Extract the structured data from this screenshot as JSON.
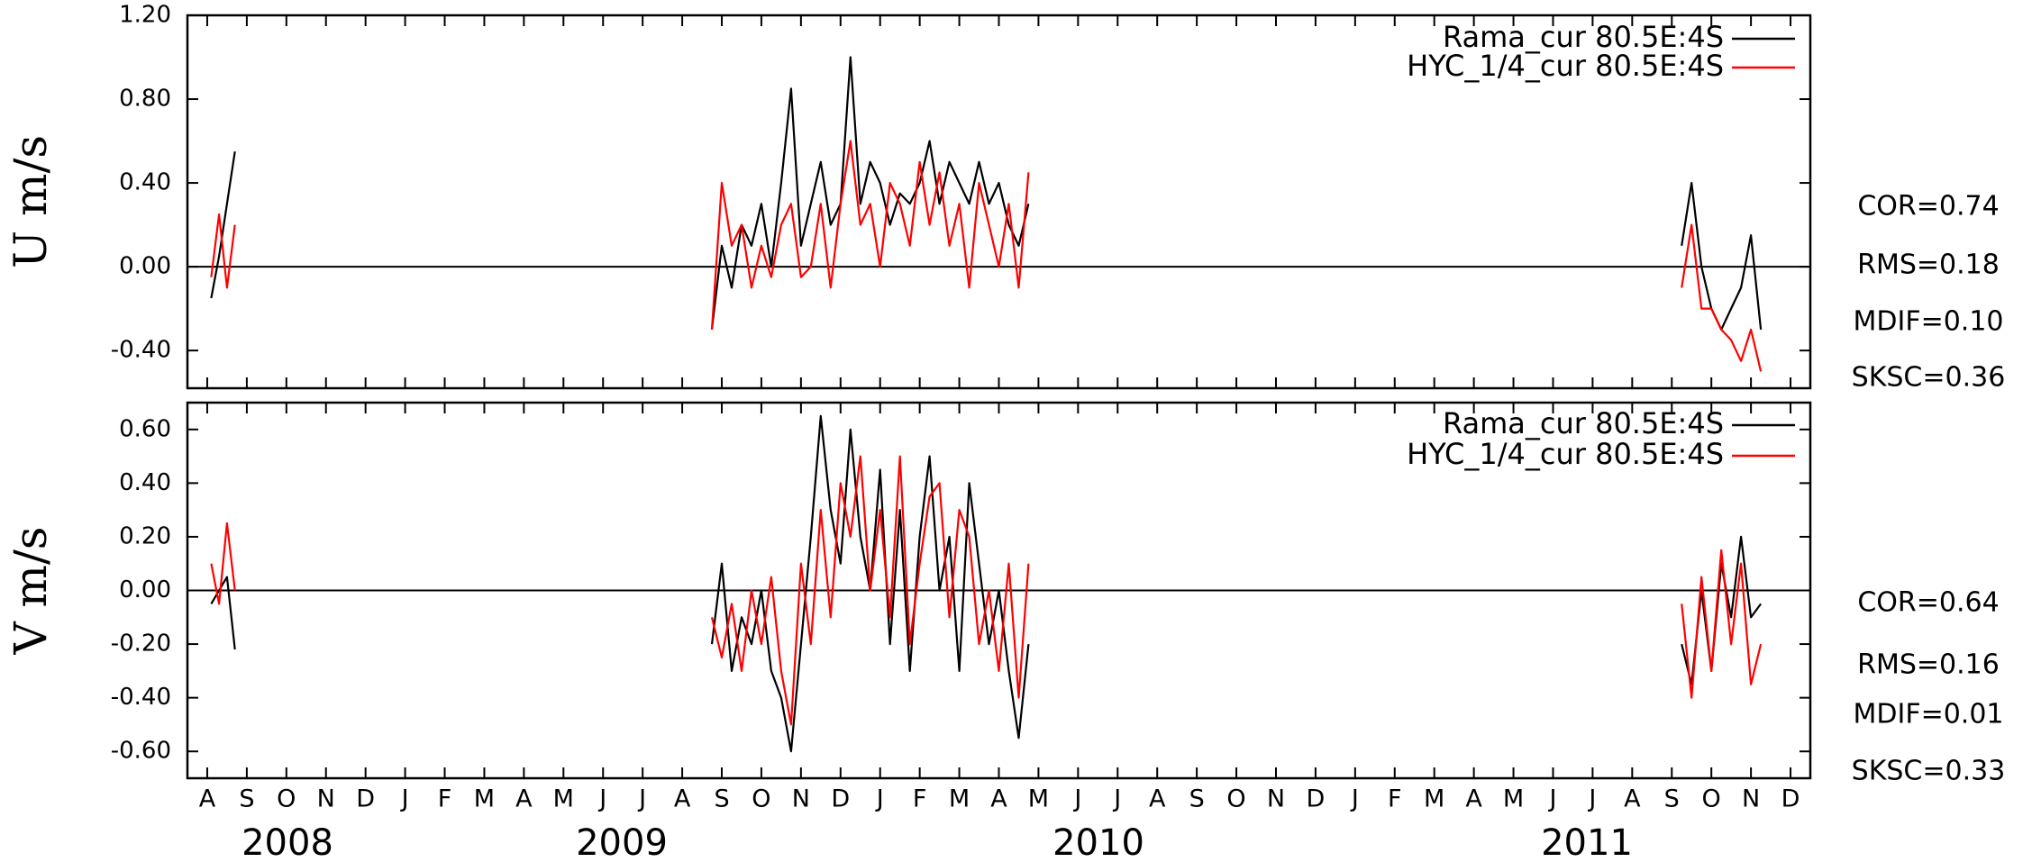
{
  "chart_data": [
    {
      "type": "line",
      "y_label": "U m/s",
      "x": [
        0.1,
        0.3,
        0.5,
        0.7,
        null,
        12.75,
        13,
        13.25,
        13.5,
        13.75,
        14,
        14.25,
        14.5,
        14.75,
        15,
        15.25,
        15.5,
        15.75,
        16,
        16.25,
        16.5,
        16.75,
        17,
        17.25,
        17.5,
        17.75,
        18,
        18.25,
        18.5,
        18.75,
        19,
        19.25,
        19.5,
        19.75,
        20,
        20.25,
        20.5,
        20.75,
        null,
        37.25,
        37.5,
        37.75,
        38,
        38.25,
        38.5,
        38.75,
        39,
        39.25
      ],
      "xlim": [
        -0.5,
        40.5
      ],
      "ylim": [
        -0.58,
        1.2
      ],
      "yticks": [
        {
          "value": -0.4,
          "label": "-0.40"
        },
        {
          "value": 0,
          "label": "0.00"
        },
        {
          "value": 0.4,
          "label": "0.40"
        },
        {
          "value": 0.8,
          "label": "0.80"
        },
        {
          "value": 1.2,
          "label": "1.20"
        }
      ],
      "series": [
        {
          "name": "Rama_cur 80.5E:4S",
          "color": "#000000",
          "values": [
            -0.15,
            0.05,
            0.3,
            0.55,
            null,
            -0.3,
            0.1,
            -0.1,
            0.2,
            0.1,
            0.3,
            0.0,
            0.4,
            0.85,
            0.1,
            0.3,
            0.5,
            0.2,
            0.3,
            1.0,
            0.3,
            0.5,
            0.4,
            0.2,
            0.35,
            0.3,
            0.4,
            0.6,
            0.3,
            0.5,
            0.4,
            0.3,
            0.5,
            0.3,
            0.4,
            0.2,
            0.1,
            0.3,
            null,
            0.1,
            0.4,
            0.0,
            -0.2,
            -0.3,
            -0.2,
            -0.1,
            0.15,
            -0.3
          ]
        },
        {
          "name": "HYC_1/4_cur 80.5E:4S",
          "color": "#ff0000",
          "values": [
            -0.05,
            0.25,
            -0.1,
            0.2,
            null,
            -0.3,
            0.4,
            0.1,
            0.2,
            -0.1,
            0.1,
            -0.05,
            0.2,
            0.3,
            -0.05,
            0.0,
            0.3,
            -0.1,
            0.3,
            0.6,
            0.2,
            0.3,
            0.0,
            0.4,
            0.3,
            0.1,
            0.5,
            0.2,
            0.45,
            0.1,
            0.3,
            -0.1,
            0.4,
            0.2,
            0.0,
            0.3,
            -0.1,
            0.45,
            null,
            -0.1,
            0.2,
            -0.2,
            -0.2,
            -0.3,
            -0.35,
            -0.45,
            -0.3,
            -0.5
          ]
        }
      ],
      "annotations": [
        "COR=0.74",
        "RMS=0.18",
        "MDIF=0.10",
        "SKSC=0.36"
      ]
    },
    {
      "type": "line",
      "y_label": "V m/s",
      "x": [
        0.1,
        0.3,
        0.5,
        0.7,
        null,
        12.75,
        13,
        13.25,
        13.5,
        13.75,
        14,
        14.25,
        14.5,
        14.75,
        15,
        15.25,
        15.5,
        15.75,
        16,
        16.25,
        16.5,
        16.75,
        17,
        17.25,
        17.5,
        17.75,
        18,
        18.25,
        18.5,
        18.75,
        19,
        19.25,
        19.5,
        19.75,
        20,
        20.25,
        20.5,
        20.75,
        null,
        37.25,
        37.5,
        37.75,
        38,
        38.25,
        38.5,
        38.75,
        39,
        39.25
      ],
      "xlim": [
        -0.5,
        40.5
      ],
      "xticks": [
        {
          "value": 0,
          "label": "A"
        },
        {
          "value": 1,
          "label": "S"
        },
        {
          "value": 2,
          "label": "O"
        },
        {
          "value": 3,
          "label": "N"
        },
        {
          "value": 4,
          "label": "D"
        },
        {
          "value": 5,
          "label": "J"
        },
        {
          "value": 6,
          "label": "F"
        },
        {
          "value": 7,
          "label": "M"
        },
        {
          "value": 8,
          "label": "A"
        },
        {
          "value": 9,
          "label": "M"
        },
        {
          "value": 10,
          "label": "J"
        },
        {
          "value": 11,
          "label": "J"
        },
        {
          "value": 12,
          "label": "A"
        },
        {
          "value": 13,
          "label": "S"
        },
        {
          "value": 14,
          "label": "O"
        },
        {
          "value": 15,
          "label": "N"
        },
        {
          "value": 16,
          "label": "D"
        },
        {
          "value": 17,
          "label": "J"
        },
        {
          "value": 18,
          "label": "F"
        },
        {
          "value": 19,
          "label": "M"
        },
        {
          "value": 20,
          "label": "A"
        },
        {
          "value": 21,
          "label": "M"
        },
        {
          "value": 22,
          "label": "J"
        },
        {
          "value": 23,
          "label": "J"
        },
        {
          "value": 24,
          "label": "A"
        },
        {
          "value": 25,
          "label": "S"
        },
        {
          "value": 26,
          "label": "O"
        },
        {
          "value": 27,
          "label": "N"
        },
        {
          "value": 28,
          "label": "D"
        },
        {
          "value": 29,
          "label": "J"
        },
        {
          "value": 30,
          "label": "F"
        },
        {
          "value": 31,
          "label": "M"
        },
        {
          "value": 32,
          "label": "A"
        },
        {
          "value": 33,
          "label": "M"
        },
        {
          "value": 34,
          "label": "J"
        },
        {
          "value": 35,
          "label": "J"
        },
        {
          "value": 36,
          "label": "A"
        },
        {
          "value": 37,
          "label": "S"
        },
        {
          "value": 38,
          "label": "O"
        },
        {
          "value": 39,
          "label": "N"
        },
        {
          "value": 40,
          "label": "D"
        }
      ],
      "year_labels": [
        "2008",
        "2009",
        "2010",
        "2011"
      ],
      "ylim": [
        -0.7,
        0.7
      ],
      "yticks": [
        {
          "value": -0.6,
          "label": "-0.60"
        },
        {
          "value": -0.4,
          "label": "-0.40"
        },
        {
          "value": -0.2,
          "label": "-0.20"
        },
        {
          "value": 0,
          "label": "0.00"
        },
        {
          "value": 0.2,
          "label": "0.20"
        },
        {
          "value": 0.4,
          "label": "0.40"
        },
        {
          "value": 0.6,
          "label": "0.60"
        }
      ],
      "series": [
        {
          "name": "Rama_cur 80.5E:4S",
          "color": "#000000",
          "values": [
            -0.05,
            0.0,
            0.05,
            -0.22,
            null,
            -0.2,
            0.1,
            -0.3,
            -0.1,
            -0.2,
            0.0,
            -0.3,
            -0.4,
            -0.6,
            -0.2,
            0.2,
            0.65,
            0.3,
            0.1,
            0.6,
            0.2,
            0.0,
            0.45,
            -0.2,
            0.3,
            -0.3,
            0.2,
            0.5,
            0.0,
            0.2,
            -0.3,
            0.4,
            0.1,
            -0.2,
            0.0,
            -0.3,
            -0.55,
            -0.2,
            null,
            -0.2,
            -0.35,
            0.0,
            -0.3,
            0.1,
            -0.1,
            0.2,
            -0.1,
            -0.05
          ]
        },
        {
          "name": "HYC_1/4_cur 80.5E:4S",
          "color": "#ff0000",
          "values": [
            0.1,
            -0.05,
            0.25,
            0.0,
            null,
            -0.1,
            -0.25,
            -0.05,
            -0.3,
            0.0,
            -0.2,
            0.05,
            -0.3,
            -0.5,
            0.1,
            -0.2,
            0.3,
            -0.1,
            0.4,
            0.2,
            0.5,
            0.0,
            0.3,
            -0.1,
            0.5,
            -0.2,
            0.1,
            0.35,
            0.4,
            -0.1,
            0.3,
            0.2,
            -0.2,
            0.0,
            -0.3,
            0.1,
            -0.4,
            0.1,
            null,
            -0.05,
            -0.4,
            0.05,
            -0.3,
            0.15,
            -0.2,
            0.1,
            -0.35,
            -0.2
          ]
        }
      ],
      "annotations": [
        "COR=0.64",
        "RMS=0.16",
        "MDIF=0.01",
        "SKSC=0.33"
      ]
    }
  ]
}
